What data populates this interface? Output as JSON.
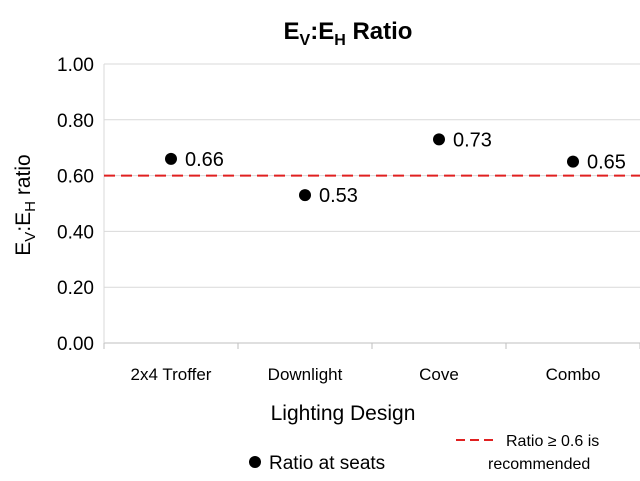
{
  "chart_data": {
    "type": "scatter",
    "title_main": "E",
    "title_sub1": "V",
    "title_sep": ":E",
    "title_sub2": "H",
    "title_tail": " Ratio",
    "xlabel": "Lighting Design",
    "ylabel_main": "E",
    "ylabel_sub1": "V",
    "ylabel_sep": ":E",
    "ylabel_sub2": "H",
    "ylabel_tail": " ratio",
    "categories": [
      "2x4 Troffer",
      "Downlight",
      "Cove",
      "Combo"
    ],
    "series": [
      {
        "name": "Ratio at seats",
        "values": [
          0.66,
          0.53,
          0.73,
          0.65
        ],
        "labels": [
          "0.66",
          "0.53",
          "0.73",
          "0.65"
        ],
        "color": "#000000"
      }
    ],
    "reference_line": {
      "value": 0.6,
      "color": "#e02020",
      "label_line1": "Ratio ≥ 0.6 is",
      "label_line2": "recommended"
    },
    "ylim": [
      0,
      1
    ],
    "yticks": [
      "0.00",
      "0.20",
      "0.40",
      "0.60",
      "0.80",
      "1.00"
    ],
    "ytick_values": [
      0,
      0.2,
      0.4,
      0.6,
      0.8,
      1.0
    ],
    "grid": true,
    "legend_position": "bottom"
  }
}
